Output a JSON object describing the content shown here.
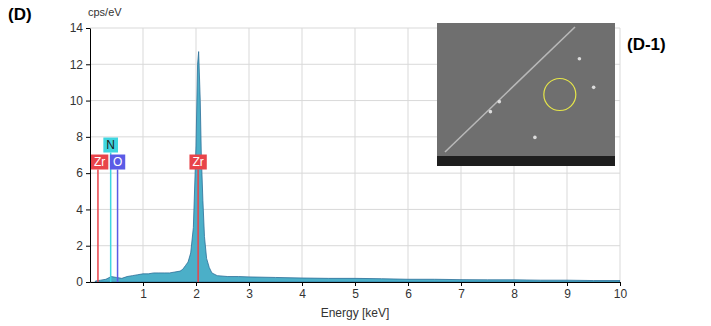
{
  "chart_data": {
    "type": "area",
    "panel_label": "(D)",
    "inset_label": "(D-1)",
    "y_label": "cps/eV",
    "x_label": "Energy [keV]",
    "x": [
      0.1,
      0.2,
      0.3,
      0.4,
      0.5,
      0.6,
      0.7,
      0.8,
      0.9,
      1.0,
      1.1,
      1.2,
      1.3,
      1.4,
      1.5,
      1.6,
      1.7,
      1.75,
      1.8,
      1.85,
      1.9,
      1.95,
      2.0,
      2.03,
      2.05,
      2.08,
      2.1,
      2.13,
      2.16,
      2.2,
      2.25,
      2.3,
      2.4,
      2.6,
      2.8,
      3.0,
      3.5,
      4.0,
      4.5,
      5.0,
      5.5,
      6.0,
      6.5,
      7.0,
      7.5,
      8.0,
      8.5,
      9.0,
      9.5,
      10.0
    ],
    "series": [
      {
        "color": "#4bafc8",
        "values": [
          0.05,
          0.1,
          0.15,
          0.3,
          0.25,
          0.2,
          0.3,
          0.35,
          0.4,
          0.45,
          0.45,
          0.5,
          0.5,
          0.5,
          0.5,
          0.55,
          0.6,
          0.7,
          0.9,
          1.1,
          1.6,
          3.0,
          7.5,
          12.0,
          12.7,
          10.0,
          7.0,
          4.5,
          2.5,
          1.3,
          0.8,
          0.5,
          0.35,
          0.3,
          0.3,
          0.28,
          0.25,
          0.22,
          0.2,
          0.2,
          0.18,
          0.15,
          0.15,
          0.13,
          0.12,
          0.12,
          0.1,
          0.1,
          0.08,
          0.08
        ]
      }
    ],
    "annotations": [
      {
        "label": "Zr",
        "x": 0.15,
        "color": "#e8444a"
      },
      {
        "label": "N",
        "x": 0.39,
        "color": "#3fd6e0"
      },
      {
        "label": "O",
        "x": 0.52,
        "color": "#5b5be6"
      },
      {
        "label": "Zr",
        "x": 2.04,
        "color": "#e8444a"
      }
    ],
    "xlim": [
      0,
      10
    ],
    "xticks": [
      1,
      2,
      3,
      4,
      5,
      6,
      7,
      8,
      9,
      10
    ],
    "ylim": [
      0,
      14
    ],
    "yticks": [
      0,
      2,
      4,
      6,
      8,
      10,
      12,
      14
    ],
    "grid": true
  }
}
